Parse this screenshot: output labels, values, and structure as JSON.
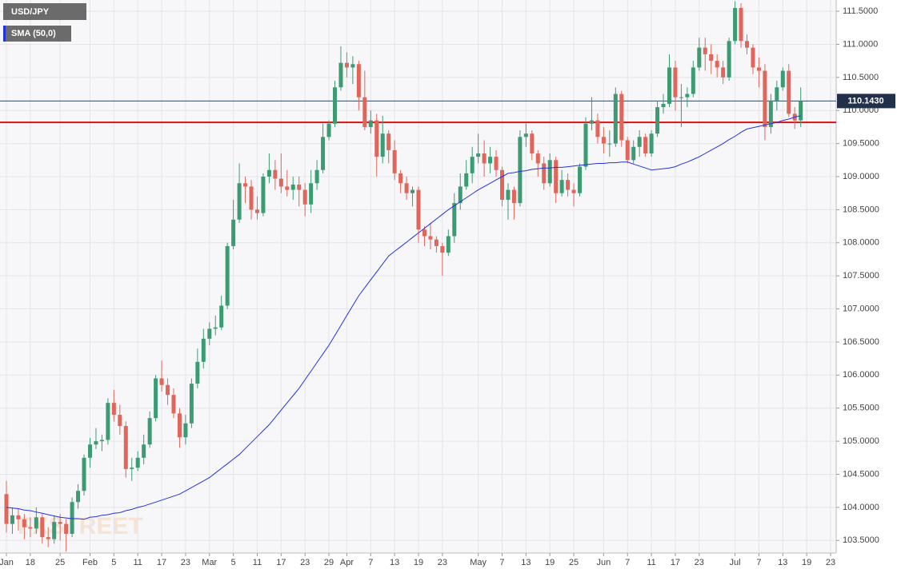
{
  "chart_data": {
    "type": "candlestick",
    "title": "USD/JPY",
    "categories": [
      "Jan",
      null,
      null,
      null,
      "18",
      null,
      null,
      null,
      null,
      "25",
      null,
      null,
      null,
      null,
      "Feb",
      null,
      null,
      null,
      "5",
      null,
      null,
      null,
      "11",
      null,
      null,
      null,
      "17",
      null,
      null,
      null,
      "23",
      null,
      null,
      null,
      "Mar",
      null,
      null,
      null,
      "5",
      null,
      null,
      null,
      "11",
      null,
      null,
      null,
      "17",
      null,
      null,
      null,
      "23",
      null,
      null,
      null,
      "29",
      null,
      null,
      "Apr",
      null,
      null,
      null,
      "7",
      null,
      null,
      null,
      "13",
      null,
      null,
      null,
      "19",
      null,
      null,
      null,
      "23",
      null,
      null,
      null,
      null,
      null,
      "May",
      null,
      null,
      null,
      "7",
      null,
      null,
      null,
      "13",
      null,
      null,
      null,
      "19",
      null,
      null,
      null,
      "25",
      null,
      null,
      null,
      null,
      "Jun",
      null,
      null,
      null,
      "7",
      null,
      null,
      null,
      "11",
      null,
      null,
      null,
      "17",
      null,
      null,
      null,
      "23",
      null,
      null,
      null,
      null,
      null,
      "Jul",
      null,
      null,
      null,
      "7",
      null,
      null,
      null,
      "13",
      null,
      null,
      null,
      "19",
      null,
      null,
      null,
      "23"
    ],
    "open": [
      104.2,
      103.75,
      103.88,
      103.82,
      103.7,
      103.68,
      103.85,
      103.55,
      103.52,
      103.78,
      103.75,
      103.6,
      104.08,
      104.25,
      104.75,
      104.95,
      105.0,
      105.02,
      105.58,
      105.4,
      105.23,
      104.58,
      104.6,
      104.75,
      104.95,
      105.35,
      105.95,
      105.85,
      105.7,
      105.42,
      105.06,
      105.27,
      105.87,
      106.2,
      106.55,
      106.7,
      106.72,
      107.05,
      107.95,
      108.35,
      108.9,
      108.85,
      108.5,
      108.45,
      109.0,
      109.1,
      108.97,
      108.85,
      108.8,
      108.88,
      108.8,
      108.58,
      108.9,
      109.1,
      109.6,
      109.8,
      110.35,
      110.72,
      110.65,
      110.7,
      110.2,
      109.75,
      109.85,
      109.3,
      109.65,
      109.4,
      109.05,
      108.9,
      108.75,
      108.8,
      108.2,
      108.1,
      108.05,
      107.95,
      107.85,
      108.1,
      108.6,
      108.85,
      109.05,
      109.3,
      109.35,
      109.2,
      109.3,
      109.1,
      108.65,
      108.8,
      108.6,
      109.6,
      109.65,
      109.35,
      109.2,
      108.9,
      109.25,
      108.75,
      108.95,
      108.8,
      108.75,
      109.15,
      109.8,
      109.85,
      109.6,
      109.5,
      109.5,
      110.25,
      109.55,
      109.25,
      109.45,
      109.6,
      109.35,
      109.65,
      110.05,
      110.1,
      110.65,
      110.2,
      110.2,
      110.25,
      110.65,
      110.95,
      110.85,
      110.75,
      110.65,
      110.5,
      111.05,
      111.55,
      111.05,
      110.95,
      110.65,
      110.6,
      109.75,
      110.15,
      110.35,
      110.6,
      109.95,
      109.85,
      null,
      null,
      null,
      null,
      null
    ],
    "high": [
      104.4,
      104.0,
      103.98,
      103.9,
      103.85,
      104.0,
      103.9,
      103.7,
      103.88,
      103.9,
      103.82,
      104.15,
      104.35,
      104.8,
      105.05,
      105.2,
      105.1,
      105.65,
      105.78,
      105.55,
      105.3,
      104.75,
      104.85,
      105.1,
      105.45,
      106.0,
      106.22,
      105.95,
      105.8,
      105.5,
      105.4,
      105.95,
      106.4,
      106.7,
      106.8,
      106.9,
      107.2,
      108.0,
      108.65,
      109.2,
      109.0,
      108.95,
      108.7,
      109.05,
      109.35,
      109.25,
      109.35,
      109.1,
      109.0,
      109.0,
      108.9,
      109.1,
      109.25,
      109.8,
      109.85,
      110.45,
      110.97,
      110.88,
      110.82,
      110.75,
      110.6,
      110.0,
      109.95,
      109.92,
      109.7,
      109.55,
      109.1,
      109.0,
      108.85,
      108.85,
      108.25,
      108.3,
      108.1,
      108.0,
      108.2,
      108.75,
      109.05,
      109.25,
      109.45,
      109.65,
      109.55,
      109.45,
      109.4,
      109.15,
      108.9,
      108.85,
      109.7,
      109.8,
      109.7,
      109.4,
      109.3,
      109.35,
      109.3,
      109.1,
      109.05,
      108.9,
      109.2,
      109.9,
      110.2,
      109.95,
      109.75,
      109.7,
      110.35,
      110.3,
      109.6,
      109.55,
      109.7,
      109.65,
      109.7,
      110.15,
      110.25,
      110.85,
      110.75,
      110.4,
      110.35,
      110.75,
      111.1,
      111.1,
      111.0,
      110.85,
      110.75,
      111.1,
      111.65,
      111.62,
      111.15,
      111.0,
      110.8,
      110.7,
      110.25,
      110.45,
      110.65,
      110.7,
      110.05,
      110.35,
      null,
      null,
      null,
      null,
      null
    ],
    "low": [
      103.62,
      103.6,
      103.65,
      103.52,
      103.55,
      103.6,
      103.45,
      103.4,
      103.45,
      103.5,
      103.33,
      103.55,
      103.98,
      104.18,
      104.6,
      104.88,
      104.85,
      104.95,
      105.3,
      105.1,
      104.45,
      104.4,
      104.55,
      104.65,
      104.9,
      105.3,
      105.75,
      105.55,
      105.35,
      104.9,
      104.95,
      105.2,
      105.8,
      106.1,
      106.45,
      106.6,
      106.68,
      107.0,
      107.9,
      108.3,
      108.6,
      108.35,
      108.35,
      108.4,
      108.9,
      108.8,
      108.75,
      108.7,
      108.65,
      108.55,
      108.4,
      108.45,
      108.8,
      109.05,
      109.55,
      109.75,
      110.3,
      110.5,
      110.4,
      110.0,
      109.7,
      109.65,
      109.0,
      109.2,
      109.2,
      108.95,
      108.75,
      108.65,
      108.55,
      108.0,
      107.95,
      107.9,
      107.85,
      107.5,
      107.8,
      108.0,
      108.5,
      108.8,
      108.9,
      109.2,
      109.0,
      109.05,
      109.0,
      108.55,
      108.35,
      108.35,
      108.55,
      109.45,
      109.25,
      109.0,
      108.8,
      108.85,
      108.6,
      108.7,
      108.7,
      108.55,
      108.7,
      109.1,
      109.7,
      109.5,
      109.35,
      109.3,
      109.45,
      109.45,
      109.2,
      109.2,
      109.3,
      109.3,
      109.3,
      109.6,
      109.95,
      110.05,
      110.0,
      109.75,
      110.05,
      110.2,
      110.6,
      110.6,
      110.55,
      110.5,
      110.4,
      110.45,
      111.0,
      110.95,
      110.85,
      110.55,
      110.35,
      109.55,
      109.65,
      110.0,
      110.3,
      109.9,
      109.72,
      109.75,
      null,
      null,
      null,
      null,
      null
    ],
    "close": [
      103.75,
      103.88,
      103.82,
      103.7,
      103.68,
      103.85,
      103.55,
      103.52,
      103.78,
      103.75,
      103.6,
      104.08,
      104.25,
      104.75,
      104.95,
      105.0,
      105.02,
      105.58,
      105.4,
      105.23,
      104.58,
      104.6,
      104.75,
      104.95,
      105.35,
      105.95,
      105.85,
      105.7,
      105.42,
      105.06,
      105.27,
      105.87,
      106.2,
      106.55,
      106.7,
      106.72,
      107.05,
      107.95,
      108.35,
      108.9,
      108.85,
      108.5,
      108.45,
      109.0,
      109.1,
      108.97,
      108.85,
      108.8,
      108.88,
      108.8,
      108.58,
      108.9,
      109.1,
      109.6,
      109.8,
      110.35,
      110.72,
      110.65,
      110.7,
      110.2,
      109.75,
      109.85,
      109.3,
      109.65,
      109.4,
      109.05,
      108.9,
      108.75,
      108.8,
      108.2,
      108.1,
      108.05,
      107.95,
      107.85,
      108.1,
      108.6,
      108.85,
      109.05,
      109.3,
      109.35,
      109.2,
      109.3,
      109.1,
      108.65,
      108.8,
      108.6,
      109.6,
      109.65,
      109.35,
      109.2,
      108.9,
      109.25,
      108.75,
      108.95,
      108.8,
      108.75,
      109.15,
      109.8,
      109.85,
      109.6,
      109.5,
      109.5,
      110.25,
      109.55,
      109.25,
      109.45,
      109.6,
      109.35,
      109.65,
      110.05,
      110.1,
      110.65,
      110.2,
      110.2,
      110.25,
      110.65,
      110.95,
      110.85,
      110.75,
      110.65,
      110.5,
      111.05,
      111.55,
      111.05,
      110.95,
      110.65,
      110.6,
      109.75,
      110.15,
      110.35,
      110.6,
      109.95,
      109.85,
      110.14,
      null,
      null,
      null,
      null,
      null
    ],
    "up_color": "#3d9b74",
    "down_color": "#e0655b",
    "series": [
      {
        "name": "SMA (50,0)",
        "color": "#2233dd",
        "values": [
          104.0,
          103.99,
          103.98,
          103.96,
          103.95,
          103.93,
          103.91,
          103.89,
          103.87,
          103.85,
          103.84,
          103.83,
          103.83,
          103.82,
          103.85,
          103.86,
          103.88,
          103.89,
          103.91,
          103.92,
          103.95,
          103.97,
          104.0,
          104.02,
          104.05,
          104.08,
          104.11,
          104.14,
          104.17,
          104.2,
          104.25,
          104.3,
          104.35,
          104.4,
          104.45,
          104.52,
          104.59,
          104.66,
          104.73,
          104.8,
          104.89,
          104.98,
          105.07,
          105.16,
          105.25,
          105.36,
          105.47,
          105.58,
          105.69,
          105.8,
          105.93,
          106.06,
          106.19,
          106.32,
          106.45,
          106.6,
          106.75,
          106.9,
          107.05,
          107.2,
          107.32,
          107.44,
          107.56,
          107.68,
          107.8,
          107.87,
          107.94,
          108.01,
          108.08,
          108.15,
          108.22,
          108.29,
          108.36,
          108.43,
          108.5,
          108.56,
          108.62,
          108.68,
          108.74,
          108.8,
          108.85,
          108.9,
          108.95,
          109.0,
          109.05,
          109.06,
          109.08,
          109.09,
          109.11,
          109.12,
          109.13,
          109.13,
          109.14,
          109.14,
          109.15,
          109.16,
          109.17,
          109.18,
          109.19,
          109.2,
          109.2,
          109.21,
          109.21,
          109.22,
          109.22,
          109.19,
          109.16,
          109.13,
          109.1,
          109.11,
          109.12,
          109.13,
          109.15,
          109.19,
          109.22,
          109.26,
          109.3,
          109.35,
          109.4,
          109.45,
          109.5,
          109.56,
          109.61,
          109.67,
          109.72,
          109.74,
          109.76,
          109.78,
          109.8,
          109.82,
          109.85,
          109.87,
          109.9,
          109.92,
          null,
          null,
          null,
          null,
          null
        ]
      }
    ],
    "hlines": [
      {
        "value": 109.82,
        "color": "#dd1111"
      }
    ],
    "last_price": {
      "value": 110.143,
      "label": "110.1430"
    },
    "ylim": [
      103.31,
      111.67
    ],
    "yticks": [
      {
        "value": 103.5,
        "label": "103.5000"
      },
      {
        "value": 104,
        "label": "104.0000"
      },
      {
        "value": 104.5,
        "label": "104.5000"
      },
      {
        "value": 105,
        "label": "105.0000"
      },
      {
        "value": 105.5,
        "label": "105.5000"
      },
      {
        "value": 106,
        "label": "106.0000"
      },
      {
        "value": 106.5,
        "label": "106.5000"
      },
      {
        "value": 107,
        "label": "107.0000"
      },
      {
        "value": 107.5,
        "label": "107.5000"
      },
      {
        "value": 108,
        "label": "108.0000"
      },
      {
        "value": 108.5,
        "label": "108.5000"
      },
      {
        "value": 109,
        "label": "109.0000"
      },
      {
        "value": 109.5,
        "label": "109.5000"
      },
      {
        "value": 110,
        "label": "110.0000"
      },
      {
        "value": 110.5,
        "label": "110.5000"
      },
      {
        "value": 111,
        "label": "111.0000"
      },
      {
        "value": 111.5,
        "label": "111.5000"
      }
    ],
    "grid": true,
    "watermark": "FXSTREET"
  }
}
